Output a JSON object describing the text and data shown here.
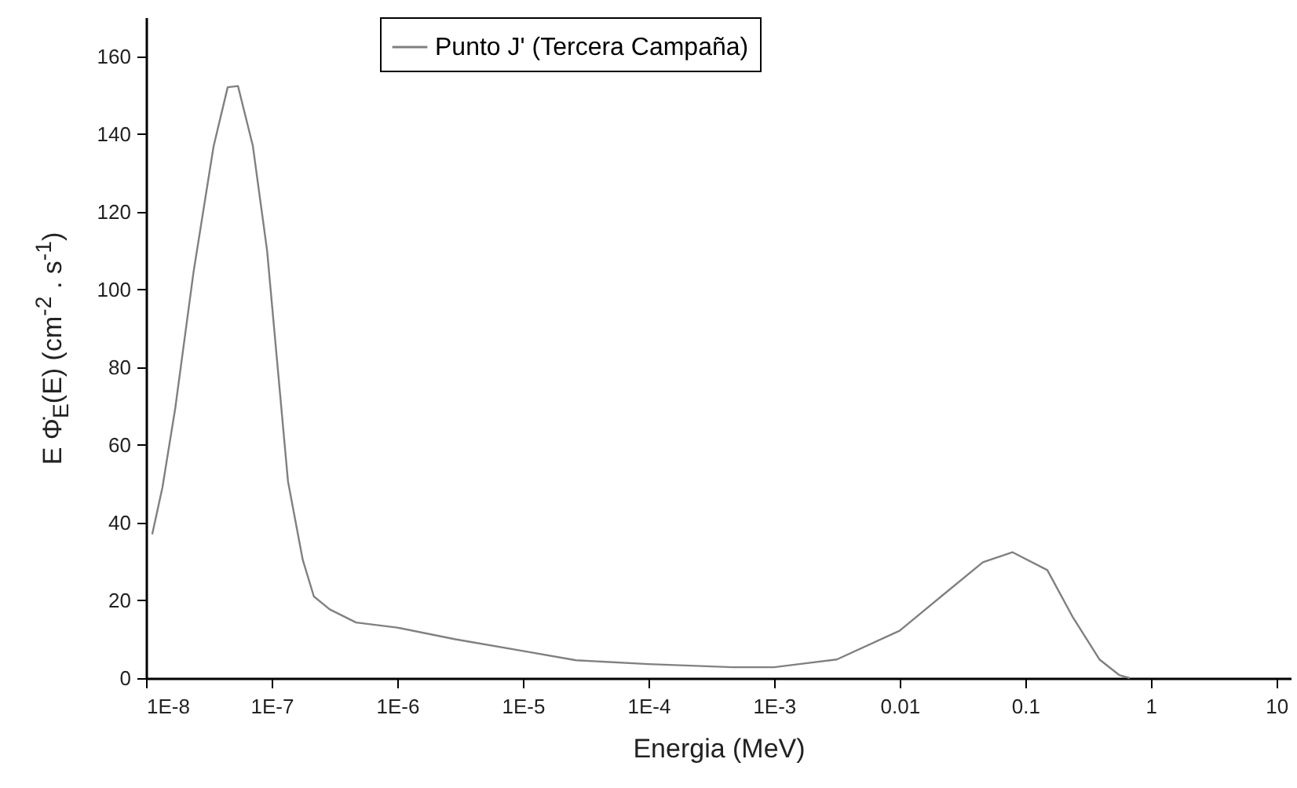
{
  "chart_data": {
    "type": "line",
    "xlabel": "Energia (MeV)",
    "ylabel": "E Φ̇$_{E}$(E) (cm$^{-2}$ . s$^{-1}$)",
    "log": "x",
    "legend": "top",
    "line_style": "solid",
    "marker": "none",
    "grid": false,
    "xlim": [
      1e-08,
      13
    ],
    "ylim": [
      0,
      170
    ],
    "xticks": [
      {
        "value": 1e-08,
        "label": "1E-8"
      },
      {
        "value": 1e-07,
        "label": "1E-7"
      },
      {
        "value": 1e-06,
        "label": "1E-6"
      },
      {
        "value": 1e-05,
        "label": "1E-5"
      },
      {
        "value": 0.0001,
        "label": "1E-4"
      },
      {
        "value": 0.001,
        "label": "1E-3"
      },
      0.01,
      0.1,
      1,
      10
    ],
    "yticks": [
      0,
      20,
      40,
      60,
      80,
      100,
      120,
      140,
      160
    ],
    "x": [
      1.12e-08,
      1.35e-08,
      1.71e-08,
      2.39e-08,
      3.45e-08,
      4.47e-08,
      5.4e-08,
      7.08e-08,
      9.2e-08,
      1.35e-07,
      1.77e-07,
      2.17e-07,
      2.9e-07,
      4.7e-07,
      1e-06,
      2.9e-06,
      1e-05,
      2.65e-05,
      0.0001,
      0.00047,
      0.001,
      0.00316,
      0.01,
      0.0214,
      0.046,
      0.079,
      0.15,
      0.24,
      0.39,
      0.56,
      0.68
    ],
    "series": [
      {
        "name": "Punto J' (Tercera Campaña)",
        "color": "#808080",
        "values": [
          37,
          49,
          69.5,
          104.5,
          136.8,
          152,
          152.3,
          137,
          110,
          50.6,
          30.4,
          21,
          17.7,
          14.3,
          13,
          10,
          7,
          4.6,
          3.6,
          2.8,
          2.8,
          4.8,
          12.2,
          21,
          29.8,
          32.4,
          27.8,
          15.6,
          4.8,
          0.8,
          0
        ]
      }
    ]
  }
}
